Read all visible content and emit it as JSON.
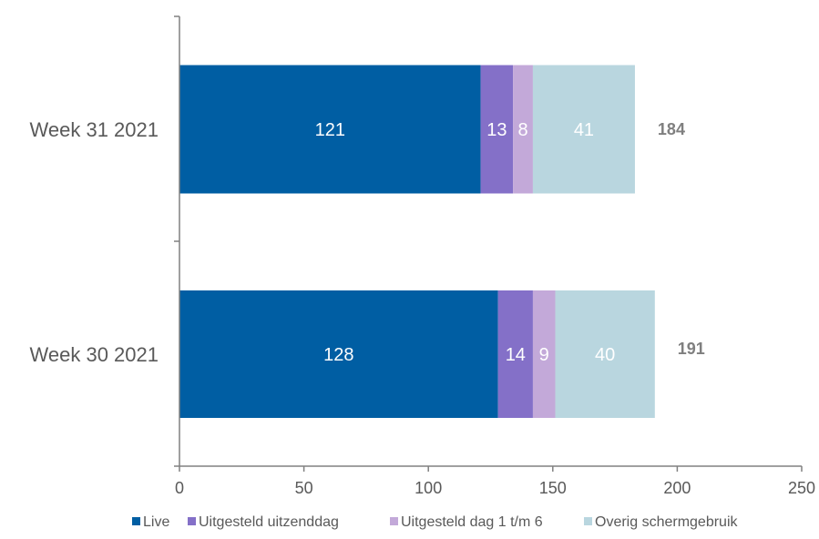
{
  "chart_data": {
    "type": "bar",
    "orientation": "horizontal",
    "stacked": true,
    "categories": [
      "Week 31 2021",
      "Week 30 2021"
    ],
    "series": [
      {
        "name": "Live",
        "values": [
          121,
          128
        ],
        "color": "#005ea3"
      },
      {
        "name": "Uitgesteld uitzenddag",
        "values": [
          13,
          14
        ],
        "color": "#8470c8"
      },
      {
        "name": "Uitgesteld dag 1 t/m 6",
        "values": [
          8,
          9
        ],
        "color": "#c3a9d9"
      },
      {
        "name": "Overig schermgebruik",
        "values": [
          41,
          40
        ],
        "color": "#b9d6df"
      }
    ],
    "totals": [
      184,
      191
    ],
    "xlim": [
      0,
      250
    ],
    "xticks": [
      "0",
      "50",
      "100",
      "150",
      "200",
      "250"
    ],
    "grid": false,
    "legend": "bottom"
  }
}
